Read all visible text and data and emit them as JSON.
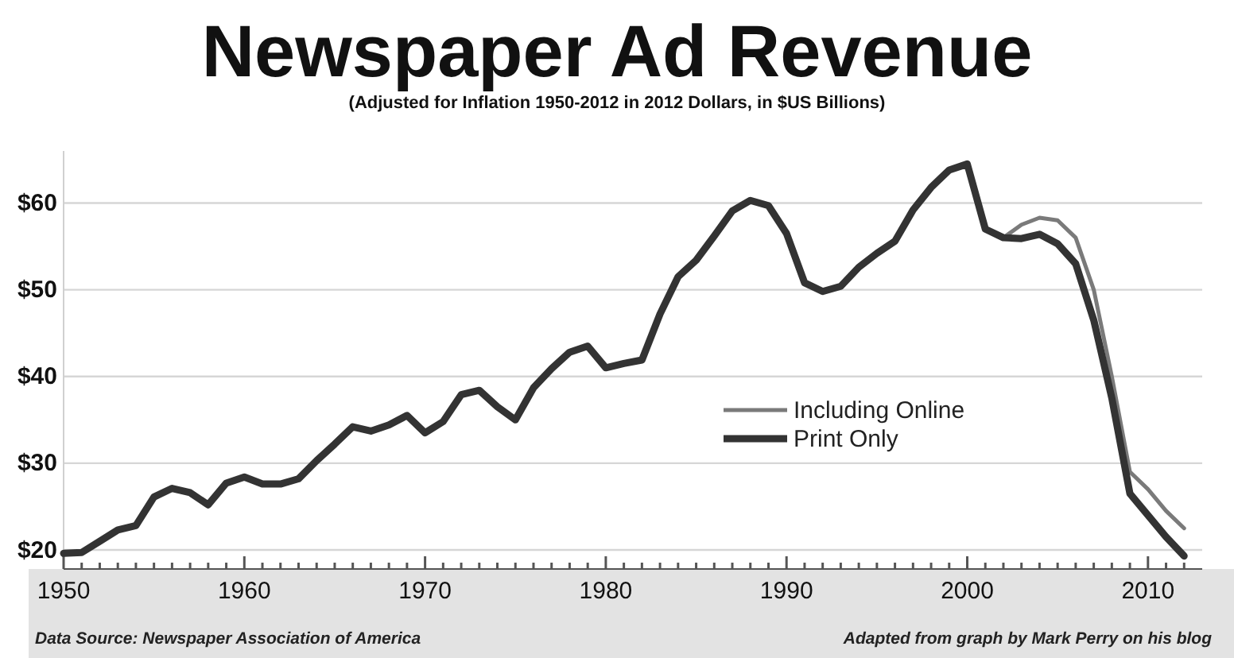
{
  "chart_data": {
    "type": "line",
    "title": "Newspaper Ad Revenue",
    "subtitle": "(Adjusted for Inflation 1950-2012 in 2012 Dollars, in $US Billions)",
    "x": [
      1950,
      1951,
      1952,
      1953,
      1954,
      1955,
      1956,
      1957,
      1958,
      1959,
      1960,
      1961,
      1962,
      1963,
      1964,
      1965,
      1966,
      1967,
      1968,
      1969,
      1970,
      1971,
      1972,
      1973,
      1974,
      1975,
      1976,
      1977,
      1978,
      1979,
      1980,
      1981,
      1982,
      1983,
      1984,
      1985,
      1986,
      1987,
      1988,
      1989,
      1990,
      1991,
      1992,
      1993,
      1994,
      1995,
      1996,
      1997,
      1998,
      1999,
      2000,
      2001,
      2002,
      2003,
      2004,
      2005,
      2006,
      2007,
      2008,
      2009,
      2010,
      2011,
      2012
    ],
    "series": [
      {
        "name": "Including Online",
        "color": "#7a7a7a",
        "values": [
          null,
          null,
          null,
          null,
          null,
          null,
          null,
          null,
          null,
          null,
          null,
          null,
          null,
          null,
          null,
          null,
          null,
          null,
          null,
          null,
          null,
          null,
          null,
          null,
          null,
          null,
          null,
          null,
          null,
          null,
          null,
          null,
          null,
          null,
          null,
          null,
          null,
          null,
          null,
          null,
          null,
          null,
          null,
          null,
          null,
          null,
          null,
          null,
          null,
          null,
          null,
          null,
          56.0,
          57.5,
          58.3,
          58.0,
          56.0,
          50.0,
          40.0,
          29.0,
          27.0,
          24.5,
          22.5
        ]
      },
      {
        "name": "Print Only",
        "color": "#333333",
        "values": [
          19.6,
          19.7,
          21.0,
          22.3,
          22.8,
          26.1,
          27.1,
          26.6,
          25.2,
          27.7,
          28.4,
          27.6,
          27.6,
          28.2,
          30.3,
          32.2,
          34.2,
          33.7,
          34.4,
          35.5,
          33.5,
          34.8,
          37.9,
          38.4,
          36.5,
          35.0,
          38.7,
          40.9,
          42.8,
          43.5,
          41.0,
          41.5,
          41.9,
          47.2,
          51.5,
          53.4,
          56.2,
          59.1,
          60.3,
          59.7,
          56.5,
          50.8,
          49.8,
          50.4,
          52.6,
          54.2,
          55.6,
          59.2,
          61.8,
          63.8,
          64.5,
          57.0,
          56.0,
          55.9,
          56.4,
          55.3,
          53.0,
          46.5,
          37.5,
          26.5,
          24.0,
          21.5,
          19.3
        ]
      }
    ],
    "xlim": [
      1950,
      2013
    ],
    "xticks": [
      1950,
      {
        "value": 1951,
        "label": null
      },
      {
        "value": 1952,
        "label": null
      },
      {
        "value": 1953,
        "label": null
      },
      {
        "value": 1954,
        "label": null
      },
      {
        "value": 1955,
        "label": null
      },
      {
        "value": 1956,
        "label": null
      },
      {
        "value": 1957,
        "label": null
      },
      {
        "value": 1958,
        "label": null
      },
      {
        "value": 1959,
        "label": null
      },
      1960,
      {
        "value": 1961,
        "label": null
      },
      {
        "value": 1962,
        "label": null
      },
      {
        "value": 1963,
        "label": null
      },
      {
        "value": 1964,
        "label": null
      },
      {
        "value": 1965,
        "label": null
      },
      {
        "value": 1966,
        "label": null
      },
      {
        "value": 1967,
        "label": null
      },
      {
        "value": 1968,
        "label": null
      },
      {
        "value": 1969,
        "label": null
      },
      1970,
      {
        "value": 1971,
        "label": null
      },
      {
        "value": 1972,
        "label": null
      },
      {
        "value": 1973,
        "label": null
      },
      {
        "value": 1974,
        "label": null
      },
      {
        "value": 1975,
        "label": null
      },
      {
        "value": 1976,
        "label": null
      },
      {
        "value": 1977,
        "label": null
      },
      {
        "value": 1978,
        "label": null
      },
      {
        "value": 1979,
        "label": null
      },
      1980,
      {
        "value": 1981,
        "label": null
      },
      {
        "value": 1982,
        "label": null
      },
      {
        "value": 1983,
        "label": null
      },
      {
        "value": 1984,
        "label": null
      },
      {
        "value": 1985,
        "label": null
      },
      {
        "value": 1986,
        "label": null
      },
      {
        "value": 1987,
        "label": null
      },
      {
        "value": 1988,
        "label": null
      },
      {
        "value": 1989,
        "label": null
      },
      1990,
      {
        "value": 1991,
        "label": null
      },
      {
        "value": 1992,
        "label": null
      },
      {
        "value": 1993,
        "label": null
      },
      {
        "value": 1994,
        "label": null
      },
      {
        "value": 1995,
        "label": null
      },
      {
        "value": 1996,
        "label": null
      },
      {
        "value": 1997,
        "label": null
      },
      {
        "value": 1998,
        "label": null
      },
      {
        "value": 1999,
        "label": null
      },
      2000,
      {
        "value": 2001,
        "label": null
      },
      {
        "value": 2002,
        "label": null
      },
      {
        "value": 2003,
        "label": null
      },
      {
        "value": 2004,
        "label": null
      },
      {
        "value": 2005,
        "label": null
      },
      {
        "value": 2006,
        "label": null
      },
      {
        "value": 2007,
        "label": null
      },
      {
        "value": 2008,
        "label": null
      },
      {
        "value": 2009,
        "label": null
      },
      2010,
      {
        "value": 2011,
        "label": null
      },
      {
        "value": 2012,
        "label": null
      }
    ],
    "ylim": [
      17.8,
      66
    ],
    "yticks": [
      {
        "value": 20,
        "label": "$20"
      },
      {
        "value": 30,
        "label": "$30"
      },
      {
        "value": 40,
        "label": "$40"
      },
      {
        "value": 50,
        "label": "$50"
      },
      {
        "value": 60,
        "label": "$60"
      }
    ],
    "grid": "y",
    "legend": "right",
    "marker": "none",
    "line_style": "solid",
    "annotations": [
      "Data Source: Newspaper Association of America",
      "Adapted from graph by Mark Perry on his blog"
    ]
  }
}
